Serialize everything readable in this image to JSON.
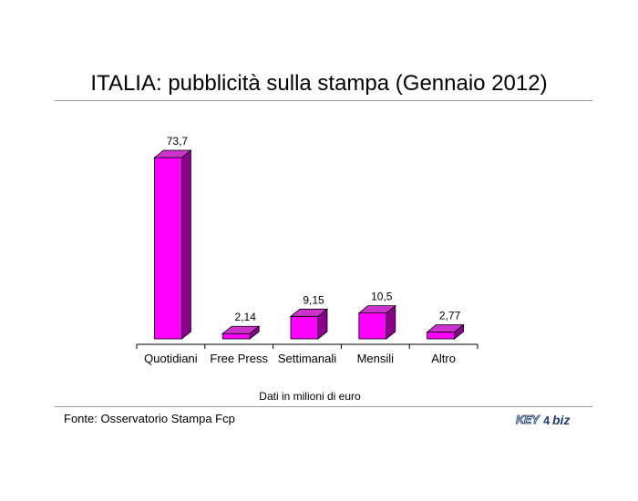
{
  "title": "ITALIA: pubblicità sulla stampa (Gennaio 2012)",
  "source": "Fonte: Osservatorio Stampa Fcp",
  "logo": {
    "key": "KEY",
    "mark": "4",
    "biz": "biz"
  },
  "colors": {
    "bar_front": "#ff00ff",
    "bar_top": "#cc33cc",
    "bar_side": "#8b008b",
    "rule": "#999999"
  },
  "chart_data": {
    "type": "bar",
    "categories": [
      "Quotidiani",
      "Free Press",
      "Settimanali",
      "Mensili",
      "Altro"
    ],
    "values": [
      73.7,
      2.14,
      9.15,
      10.5,
      2.77
    ],
    "value_labels": [
      "73,7",
      "2,14",
      "9,15",
      "10,5",
      "2,77"
    ],
    "title": "ITALIA: pubblicità sulla stampa (Gennaio 2012)",
    "xlabel": "Dati in milioni di euro",
    "ylabel": "",
    "ylim": [
      0,
      80
    ],
    "grid": false,
    "legend": "none",
    "style": "3d"
  }
}
